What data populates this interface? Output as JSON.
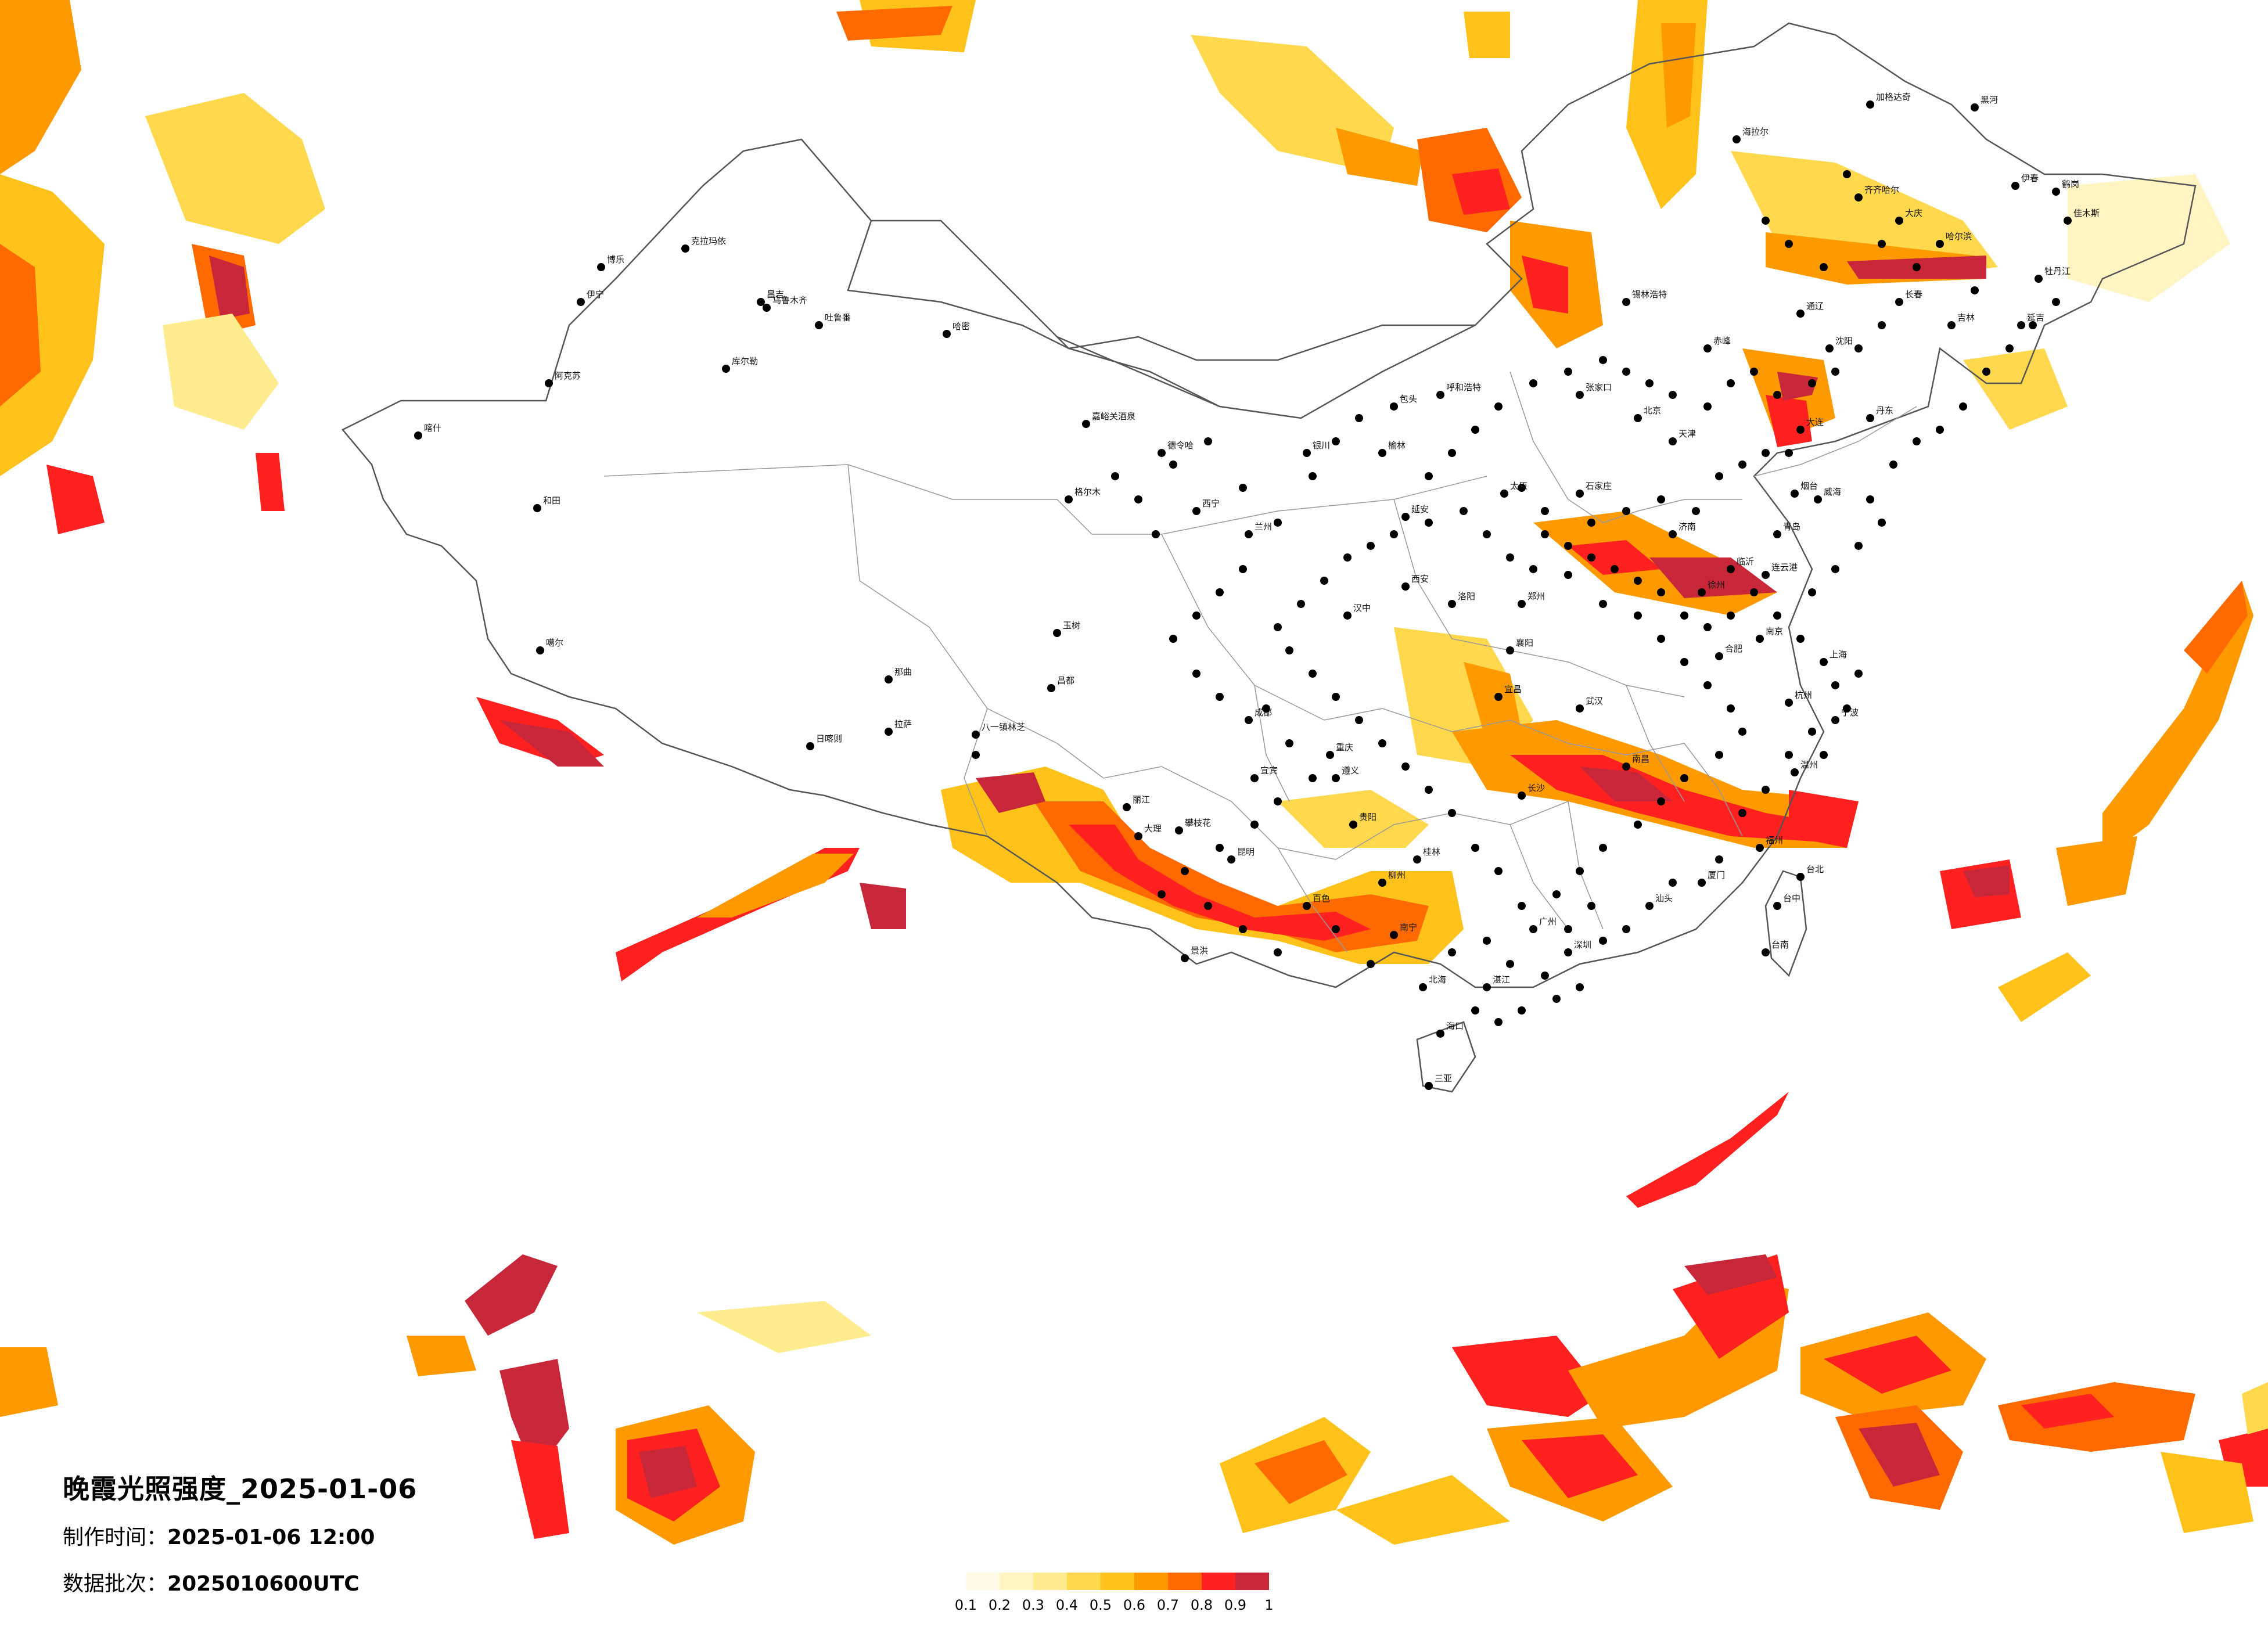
{
  "title": "晚霞光照强度_2025-01-06",
  "production_time": {
    "label": "制作时间：",
    "value": "2025-01-06 12:00"
  },
  "data_batch": {
    "label": "数据批次：",
    "value": "2025010600UTC"
  },
  "legend": {
    "colors": [
      "#fffbe6",
      "#fff4c2",
      "#ffec8f",
      "#ffd84d",
      "#ffc21a",
      "#ff9900",
      "#ff6a00",
      "#ff2020",
      "#c8273a"
    ],
    "ticks": [
      "0.1",
      "0.2",
      "0.3",
      "0.4",
      "0.5",
      "0.6",
      "0.7",
      "0.8",
      "0.9",
      "1"
    ]
  },
  "cities": [
    {
      "name": "博乐"
    },
    {
      "name": "克拉玛依"
    },
    {
      "name": "伊宁"
    },
    {
      "name": "昌吉"
    },
    {
      "name": "乌鲁木齐"
    },
    {
      "name": "吐鲁番"
    },
    {
      "name": "哈密"
    },
    {
      "name": "库尔勒"
    },
    {
      "name": "阿克苏"
    },
    {
      "name": "喀什"
    },
    {
      "name": "和田"
    },
    {
      "name": "嘉峪关酒泉"
    },
    {
      "name": "格尔木"
    },
    {
      "name": "德令哈"
    },
    {
      "name": "噶尔"
    },
    {
      "name": "那曲"
    },
    {
      "name": "日喀则"
    },
    {
      "name": "拉萨"
    },
    {
      "name": "八一镇林芝"
    },
    {
      "name": "昌都"
    },
    {
      "name": "玉树"
    },
    {
      "name": "西宁"
    },
    {
      "name": "兰州"
    },
    {
      "name": "银川"
    },
    {
      "name": "呼和浩特"
    },
    {
      "name": "包头"
    },
    {
      "name": "西安"
    },
    {
      "name": "成都"
    },
    {
      "name": "重庆"
    },
    {
      "name": "贵阳"
    },
    {
      "name": "昆明"
    },
    {
      "name": "南宁"
    },
    {
      "name": "广州"
    },
    {
      "name": "海口"
    },
    {
      "name": "三亚"
    },
    {
      "name": "长沙"
    },
    {
      "name": "武汉"
    },
    {
      "name": "郑州"
    },
    {
      "name": "石家庄"
    },
    {
      "name": "北京"
    },
    {
      "name": "天津"
    },
    {
      "name": "济南"
    },
    {
      "name": "南京"
    },
    {
      "name": "上海"
    },
    {
      "name": "杭州"
    },
    {
      "name": "合肥"
    },
    {
      "name": "南昌"
    },
    {
      "name": "福州"
    },
    {
      "name": "台北"
    },
    {
      "name": "台中"
    },
    {
      "name": "台南"
    },
    {
      "name": "沈阳"
    },
    {
      "name": "长春"
    },
    {
      "name": "哈尔滨"
    },
    {
      "name": "大连"
    },
    {
      "name": "青岛"
    },
    {
      "name": "太原"
    },
    {
      "name": "锡林浩特"
    },
    {
      "name": "张家口"
    },
    {
      "name": "赤峰"
    },
    {
      "name": "通辽"
    },
    {
      "name": "海拉尔"
    },
    {
      "name": "加格达奇"
    },
    {
      "name": "齐齐哈尔"
    },
    {
      "name": "大庆"
    },
    {
      "name": "牡丹江"
    },
    {
      "name": "佳木斯"
    },
    {
      "name": "鹤岗"
    },
    {
      "name": "伊春"
    },
    {
      "name": "黑河"
    },
    {
      "name": "延吉"
    },
    {
      "name": "吉林"
    },
    {
      "name": "丹东"
    },
    {
      "name": "烟台"
    },
    {
      "name": "威海"
    },
    {
      "name": "临沂"
    },
    {
      "name": "徐州"
    },
    {
      "name": "连云港"
    },
    {
      "name": "宁波"
    },
    {
      "name": "温州"
    },
    {
      "name": "厦门"
    },
    {
      "name": "汕头"
    },
    {
      "name": "深圳"
    },
    {
      "name": "湛江"
    },
    {
      "name": "北海"
    },
    {
      "name": "桂林"
    },
    {
      "name": "柳州"
    },
    {
      "name": "百色"
    },
    {
      "name": "遵义"
    },
    {
      "name": "宜宾"
    },
    {
      "name": "攀枝花"
    },
    {
      "name": "大理"
    },
    {
      "name": "丽江"
    },
    {
      "name": "景洪"
    },
    {
      "name": "宜昌"
    },
    {
      "name": "襄阳"
    },
    {
      "name": "洛阳"
    },
    {
      "name": "延安"
    },
    {
      "name": "榆林"
    },
    {
      "name": "汉中"
    }
  ]
}
